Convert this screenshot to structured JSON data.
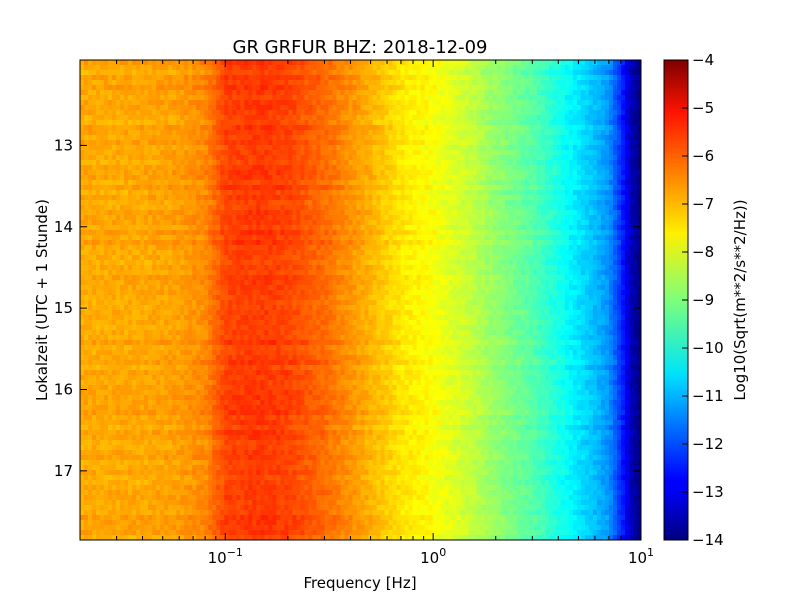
{
  "chart_data": {
    "type": "heatmap",
    "title": "GR GRFUR BHZ: 2018-12-09",
    "xlabel": "Frequency [Hz]",
    "ylabel": "Lokalzeit (UTC + 1 Stunde)",
    "x_scale": "log",
    "xlim": [
      0.02,
      10
    ],
    "ylim": [
      11.95,
      17.85
    ],
    "y_inverted": true,
    "x_ticks": [
      {
        "value": 0.1,
        "base": "10",
        "exp": "−1"
      },
      {
        "value": 1,
        "base": "10",
        "exp": "0"
      },
      {
        "value": 10,
        "base": "10",
        "exp": "1"
      }
    ],
    "y_ticks": [
      {
        "value": 13,
        "label": "13"
      },
      {
        "value": 14,
        "label": "14"
      },
      {
        "value": 15,
        "label": "15"
      },
      {
        "value": 16,
        "label": "16"
      },
      {
        "value": 17,
        "label": "17"
      }
    ],
    "colorbar": {
      "label": "Log10(Sqrt(m**2/s**2/Hz))",
      "range": [
        -14,
        -4
      ],
      "colormap": "jet",
      "ticks": [
        {
          "value": -4,
          "label": "−4"
        },
        {
          "value": -5,
          "label": "−5"
        },
        {
          "value": -6,
          "label": "−6"
        },
        {
          "value": -7,
          "label": "−7"
        },
        {
          "value": -8,
          "label": "−8"
        },
        {
          "value": -9,
          "label": "−9"
        },
        {
          "value": -10,
          "label": "−10"
        },
        {
          "value": -11,
          "label": "−11"
        },
        {
          "value": -12,
          "label": "−12"
        },
        {
          "value": -13,
          "label": "−13"
        },
        {
          "value": -14,
          "label": "−14"
        }
      ]
    },
    "spectrum_profile": {
      "frequencies_hz": [
        0.02,
        0.04,
        0.06,
        0.08,
        0.1,
        0.15,
        0.2,
        0.3,
        0.5,
        0.7,
        1.0,
        1.5,
        2,
        3,
        4,
        5,
        6,
        7,
        8,
        9,
        10
      ],
      "log10_amplitude": [
        -6.9,
        -6.9,
        -6.8,
        -6.6,
        -5.9,
        -5.8,
        -5.9,
        -6.3,
        -7.0,
        -7.5,
        -7.8,
        -8.3,
        -8.8,
        -9.4,
        -10.0,
        -10.5,
        -10.9,
        -11.3,
        -12.3,
        -13.5,
        -14.0
      ]
    }
  }
}
